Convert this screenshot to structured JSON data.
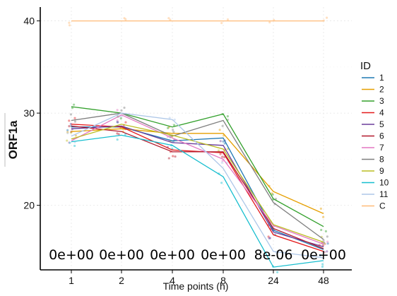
{
  "chart_data": {
    "type": "line",
    "title": "",
    "xlabel": "Time points (h)",
    "ylabel": "ORF1a",
    "categories": [
      "1",
      "2",
      "4",
      "8",
      "24",
      "48"
    ],
    "ylim": [
      13,
      41.5
    ],
    "yticks": [
      20,
      30,
      40
    ],
    "grid": true,
    "legend": {
      "title": "ID",
      "placement": "right"
    },
    "annotations": [
      "0e+00",
      "0e+00",
      "0e+00",
      "0e+00",
      "8e-06",
      "0e+00"
    ],
    "series": [
      {
        "name": "1",
        "color": "#1f78b4",
        "values": [
          28.5,
          28.5,
          27.0,
          27.3,
          17.3,
          15.2
        ]
      },
      {
        "name": "2",
        "color": "#e69f00",
        "values": [
          28.0,
          28.3,
          27.8,
          27.8,
          21.5,
          19.1
        ]
      },
      {
        "name": "3",
        "color": "#33a02c",
        "values": [
          30.7,
          30.0,
          28.5,
          29.9,
          20.7,
          17.7
        ]
      },
      {
        "name": "4",
        "color": "#e31a1c",
        "values": [
          28.8,
          28.5,
          26.0,
          25.7,
          16.8,
          15.0
        ]
      },
      {
        "name": "5",
        "color": "#6a3d9a",
        "values": [
          28.3,
          28.6,
          26.8,
          26.5,
          17.1,
          15.5
        ]
      },
      {
        "name": "6",
        "color": "#b2182b",
        "values": [
          28.6,
          28.0,
          25.8,
          25.8,
          17.5,
          15.3
        ]
      },
      {
        "name": "7",
        "color": "#e377c2",
        "values": [
          27.0,
          29.8,
          27.3,
          25.0,
          17.8,
          15.8
        ]
      },
      {
        "name": "8",
        "color": "#7f7f7f",
        "values": [
          29.2,
          30.0,
          27.5,
          29.2,
          20.3,
          16.3
        ]
      },
      {
        "name": "9",
        "color": "#bcbd22",
        "values": [
          27.2,
          28.8,
          27.6,
          26.1,
          17.9,
          16.0
        ]
      },
      {
        "name": "10",
        "color": "#17becf",
        "values": [
          26.9,
          27.6,
          26.5,
          23.1,
          13.3,
          14.0
        ]
      },
      {
        "name": "11",
        "color": "#aec7e8",
        "values": [
          27.5,
          30.0,
          29.3,
          24.0,
          15.0,
          14.3
        ]
      },
      {
        "name": "C",
        "color": "#ffbb78",
        "values": [
          40.0,
          40.0,
          40.0,
          40.0,
          40.0,
          40.0
        ]
      }
    ]
  }
}
